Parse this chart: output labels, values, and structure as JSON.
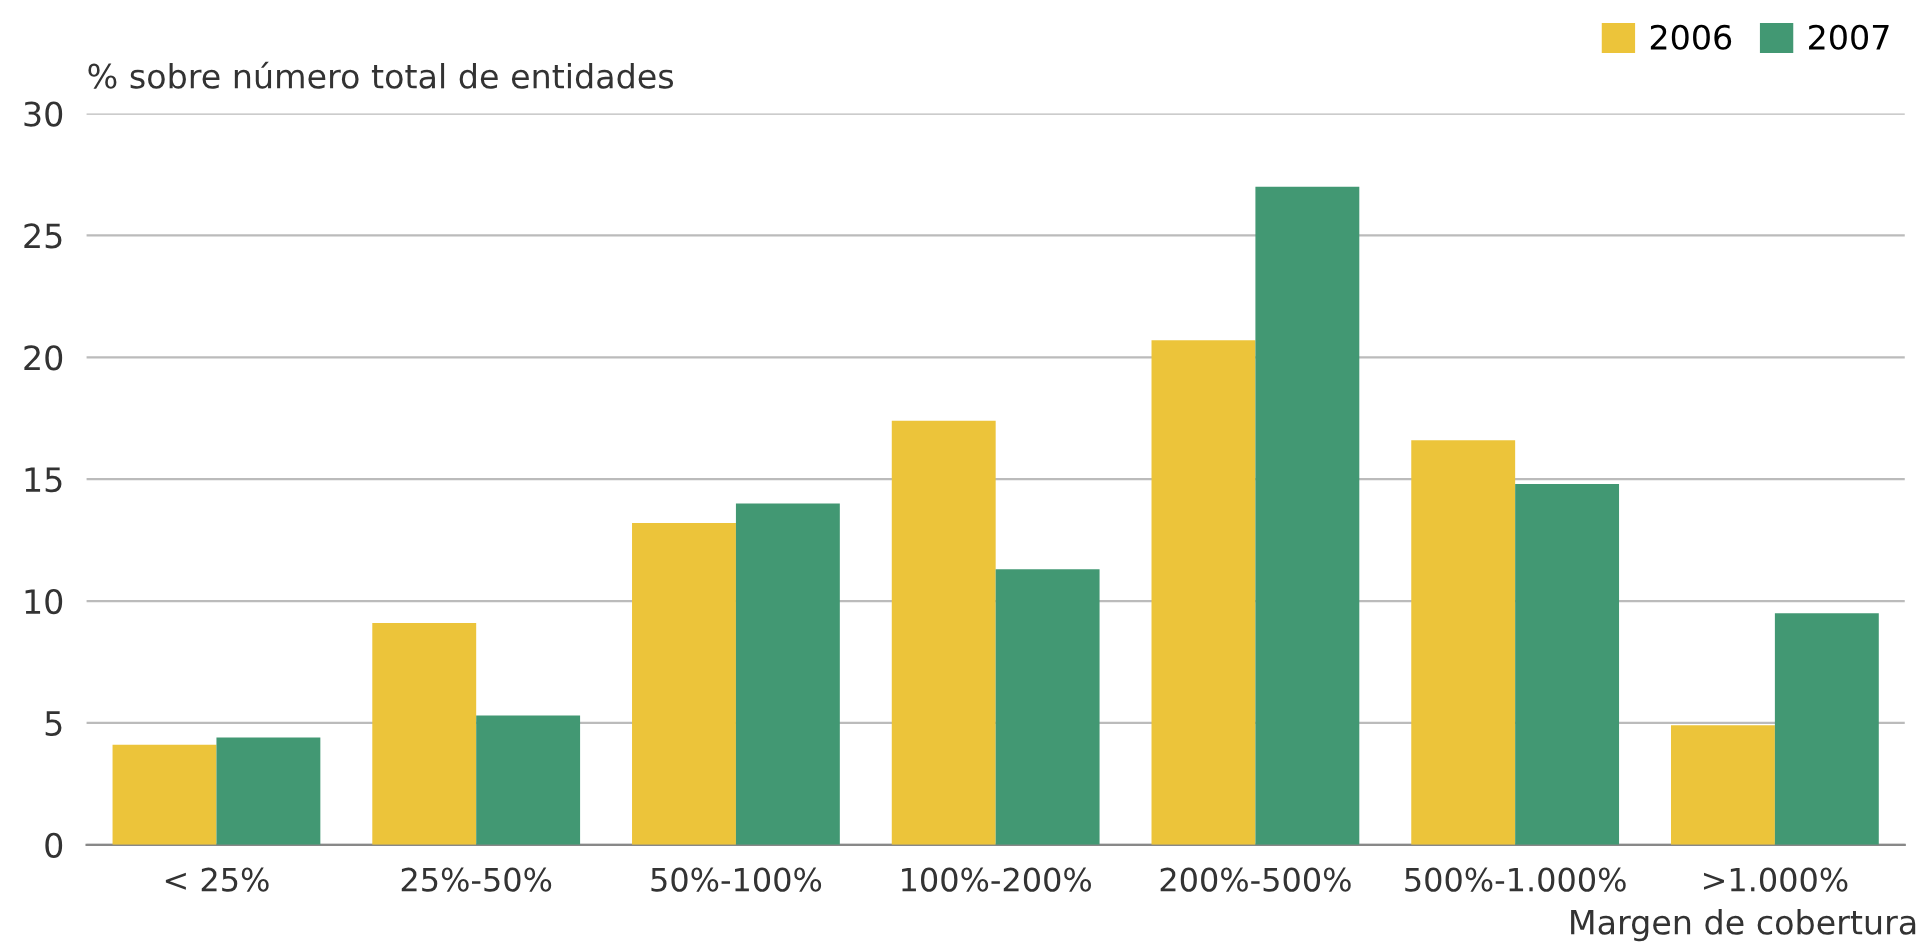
{
  "chart_data": {
    "type": "bar",
    "ylabel": "% sobre número total de entidades",
    "xlabel": "Margen de cobertura",
    "categories": [
      "< 25%",
      "25%-50%",
      "50%-100%",
      "100%-200%",
      "200%-500%",
      "500%-1.000%",
      ">1.000%"
    ],
    "series": [
      {
        "name": "2006",
        "color": "#ecc43a",
        "values": [
          4.1,
          9.1,
          13.2,
          17.4,
          20.7,
          16.6,
          4.9
        ]
      },
      {
        "name": "2007",
        "color": "#429873",
        "values": [
          4.4,
          5.3,
          14.0,
          11.3,
          27.0,
          14.8,
          9.5
        ]
      }
    ],
    "ylim": [
      0,
      30
    ],
    "yticks": [
      0,
      5,
      10,
      15,
      20,
      25,
      30
    ],
    "grid": "y",
    "legend": "top right"
  }
}
